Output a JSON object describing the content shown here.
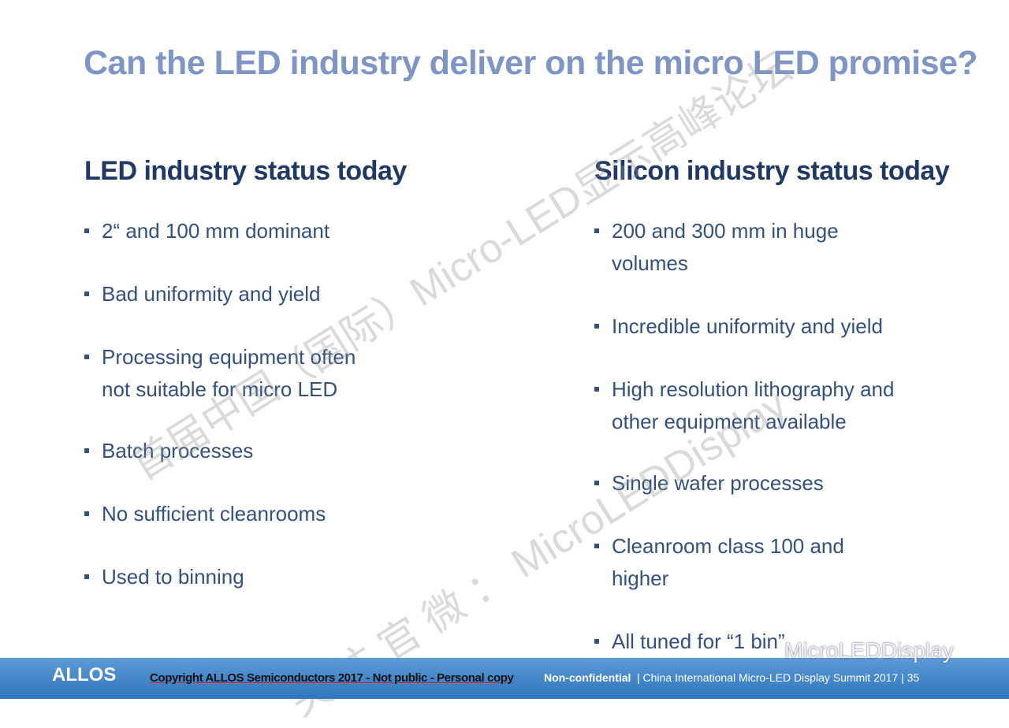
{
  "title": "Can the LED industry deliver on the micro LED promise?",
  "columns": [
    {
      "heading": "LED industry status today",
      "bullets": [
        "2“ and 100 mm dominant",
        "Bad uniformity and yield",
        "Processing equipment often not suitable for micro LED",
        "Batch processes",
        "No sufficient cleanrooms",
        "Used to binning"
      ]
    },
    {
      "heading": "Silicon industry status today",
      "bullets": [
        "200 and 300 mm in huge volumes",
        "Incredible uniformity and yield",
        "High resolution lithography and other equipment available",
        "Single wafer processes",
        "Cleanroom class 100 and higher",
        "All tuned for “1 bin”"
      ]
    }
  ],
  "watermarks": [
    "首届中国（国际）Micro-LED显示高峰论坛",
    "关 注 官 微 ： MicroLEDDisplay",
    "MicroLEDDisplay"
  ],
  "footer": {
    "logo": "ALLOS",
    "copyright": "Copyright ALLOS Semiconductors 2017 - Not public - Personal copy",
    "classification": "Non-confidential",
    "event": "| China International Micro-LED Display Summit 2017 | 35"
  }
}
